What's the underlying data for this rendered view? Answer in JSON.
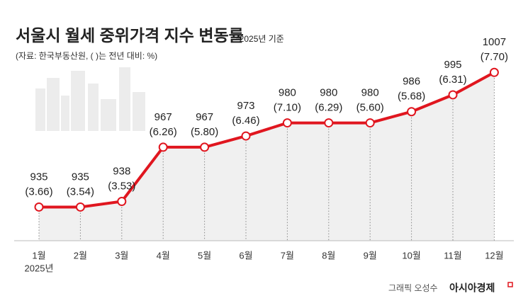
{
  "chart_data": {
    "type": "line",
    "title": "서울시 월세 중위가격 지수 변동률",
    "note": "*2025년 기준",
    "subtitle": "(자료: 한국부동산원, ( )는 전년 대비: %)",
    "categories": [
      "1월",
      "2월",
      "3월",
      "4월",
      "5월",
      "6월",
      "7월",
      "8월",
      "9월",
      "10월",
      "11월",
      "12월"
    ],
    "year_label": "2025년",
    "series": [
      {
        "color": "#e0161f",
        "values": [
          935,
          935,
          938,
          967,
          967,
          973,
          980,
          980,
          980,
          986,
          995,
          1007
        ]
      }
    ],
    "changes": {
      "values": [
        3.66,
        3.54,
        3.53,
        6.26,
        5.8,
        6.46,
        7.1,
        6.29,
        5.6,
        5.68,
        6.31,
        7.7
      ],
      "value_labels": [
        "(3.66)",
        "(3.54)",
        "(3.53)",
        "(6.26)",
        "(5.80)",
        "(6.46)",
        "(7.10)",
        "(6.29)",
        "(5.60)",
        "(5.68)",
        "(6.31)",
        "(7.70)"
      ]
    },
    "ylim": [
      917,
      1023
    ],
    "credit": "그래픽 오성수",
    "publisher": "아시아경제"
  }
}
